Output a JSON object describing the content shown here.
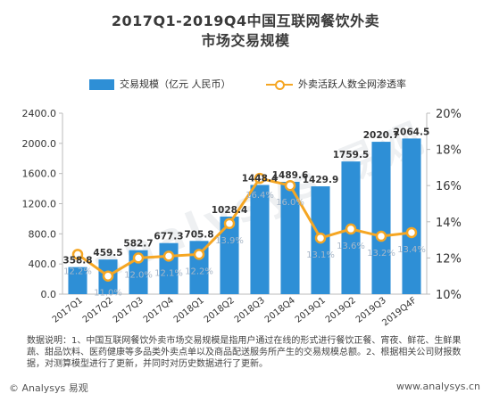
{
  "header": {
    "title_line1": "2017Q1-2019Q4中国互联网餐饮外卖",
    "title_line2": "市场交易规模"
  },
  "legend": {
    "bar_label": "交易规模（亿元 人民币）",
    "line_label": "外卖活跃人数全网渗透率"
  },
  "chart_data": {
    "type": "bar",
    "title": "2017Q1-2019Q4中国互联网餐饮外卖市场交易规模",
    "categories": [
      "2017Q1",
      "2017Q2",
      "2017Q3",
      "2017Q4",
      "2018Q1",
      "2018Q2",
      "2018Q3",
      "2018Q4",
      "2019Q1",
      "2019Q2",
      "2019Q3",
      "2019Q4F"
    ],
    "series": [
      {
        "name": "交易规模（亿元 人民币）",
        "type": "bar",
        "axis": "left",
        "values": [
          358.8,
          459.5,
          582.7,
          677.3,
          705.8,
          1028.4,
          1448.4,
          1489.6,
          1429.9,
          1759.5,
          2020.7,
          2064.5
        ],
        "labels": [
          "358.8",
          "459.5",
          "582.7",
          "677.3",
          "705.8",
          "1028.4",
          "1448.4",
          "1489.6",
          "1429.9",
          "1759.5",
          "2020.7",
          "2064.5"
        ]
      },
      {
        "name": "外卖活跃人数全网渗透率",
        "type": "line",
        "axis": "right",
        "values": [
          12.2,
          11.0,
          12.0,
          12.1,
          12.2,
          13.9,
          16.4,
          16.0,
          13.1,
          13.6,
          13.2,
          13.4
        ],
        "labels": [
          "12.2%",
          "11.0%",
          "12.0%",
          "12.1%",
          "12.2%",
          "13.9%",
          "16.4%",
          "16.0%",
          "13.1%",
          "13.6%",
          "13.2%",
          "13.4%"
        ]
      }
    ],
    "y_left": {
      "ylim": [
        0,
        2400
      ],
      "ticks": [
        "0.0",
        "400.0",
        "800.0",
        "1200.0",
        "1600.0",
        "2000.0",
        "2400.0"
      ]
    },
    "y_right": {
      "ylim": [
        10,
        20
      ],
      "ticks": [
        "10%",
        "12%",
        "14%",
        "16%",
        "18%",
        "20%"
      ]
    },
    "grid": false,
    "legend_position": "top",
    "colors": {
      "bar": "#2e8fd6",
      "line": "#f5a623",
      "bar_label": "#333333",
      "line_label": "#aab8c8"
    }
  },
  "note": "数据说明：1、中国互联网餐饮外卖市场交易规模是指用户通过在线的形式进行餐饮正餐、宵夜、鲜花、生鲜果蔬、甜品饮料、医药健康等多品类外卖点单以及商品配送服务所产生的交易规模总额。2、根据相关公司财报数据，对测算模型进行了更新，并同时对历史数据进行了更新。",
  "footer": {
    "brand": "© Analysys 易观",
    "url": "www.analysys.cn"
  },
  "watermark": "analysys 易观"
}
